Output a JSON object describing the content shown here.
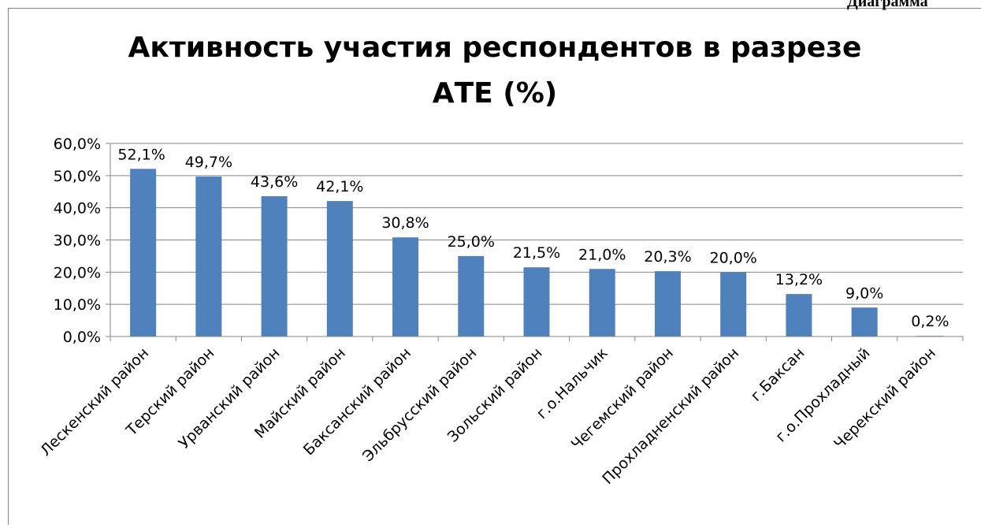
{
  "caption": "Диаграмма",
  "chart_data": {
    "type": "bar",
    "title": [
      "Активность участия  респондентов в разрезе",
      "АТЕ (%)"
    ],
    "categories": [
      "Лескенский район",
      "Терский район",
      "Урванский район",
      "Майский район",
      "Баксанский район",
      "Эльбрусский район",
      "Зольский район",
      "г.о.Нальчик",
      "Чегемский район",
      "Прохладненский район",
      "г.Баксан",
      "г.о.Прохладный",
      "Черекский район"
    ],
    "values": [
      52.1,
      49.7,
      43.6,
      42.1,
      30.8,
      25.0,
      21.5,
      21.0,
      20.3,
      20.0,
      13.2,
      9.0,
      0.2
    ],
    "value_labels": [
      "52,1%",
      "49,7%",
      "43,6%",
      "42,1%",
      "30,8%",
      "25,0%",
      "21,5%",
      "21,0%",
      "20,3%",
      "20,0%",
      "13,2%",
      "9,0%",
      "0,2%"
    ],
    "color": "#4f81bd",
    "ylim": [
      0,
      60
    ],
    "yticks": [
      {
        "value": 0,
        "label": "0,0%"
      },
      {
        "value": 10,
        "label": "10,0%"
      },
      {
        "value": 20,
        "label": "20,0%"
      },
      {
        "value": 30,
        "label": "30,0%"
      },
      {
        "value": 40,
        "label": "40,0%"
      },
      {
        "value": 50,
        "label": "50,0%"
      },
      {
        "value": 60,
        "label": "60,0%"
      }
    ],
    "grid": true
  }
}
